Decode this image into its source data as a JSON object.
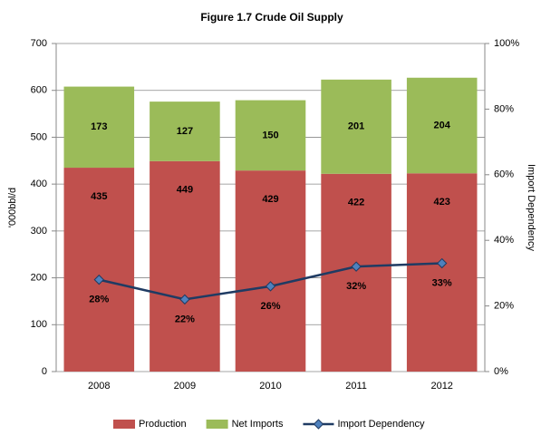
{
  "chart_data": {
    "type": "bar",
    "stacked": true,
    "title": "Figure 1.7  Crude Oil Supply",
    "ylabel": "'000bbl/d",
    "y2label": "Import Dependency",
    "categories": [
      "2008",
      "2009",
      "2010",
      "2011",
      "2012"
    ],
    "series": [
      {
        "name": "Production",
        "color": "#c0504d",
        "values": [
          435,
          449,
          429,
          422,
          423
        ]
      },
      {
        "name": "Net Imports",
        "color": "#9bbb59",
        "values": [
          173,
          127,
          150,
          201,
          204
        ]
      },
      {
        "name": "Import Dependency",
        "type": "line",
        "axis": "y2",
        "color": "#1f3b63",
        "marker_color": "#4f81bd",
        "values": [
          28,
          22,
          26,
          32,
          33
        ],
        "value_labels": [
          "28%",
          "22%",
          "26%",
          "32%",
          "33%"
        ]
      }
    ],
    "ylim": [
      0,
      700
    ],
    "yticks": [
      0,
      100,
      200,
      300,
      400,
      500,
      600,
      700
    ],
    "y2lim": [
      0,
      100
    ],
    "y2ticks": [
      {
        "value": 0,
        "label": "0%"
      },
      {
        "value": 20,
        "label": "20%"
      },
      {
        "value": 40,
        "label": "40%"
      },
      {
        "value": 60,
        "label": "60%"
      },
      {
        "value": 80,
        "label": "80%"
      },
      {
        "value": 100,
        "label": "100%"
      }
    ],
    "grid": true,
    "legend": "bottom"
  }
}
